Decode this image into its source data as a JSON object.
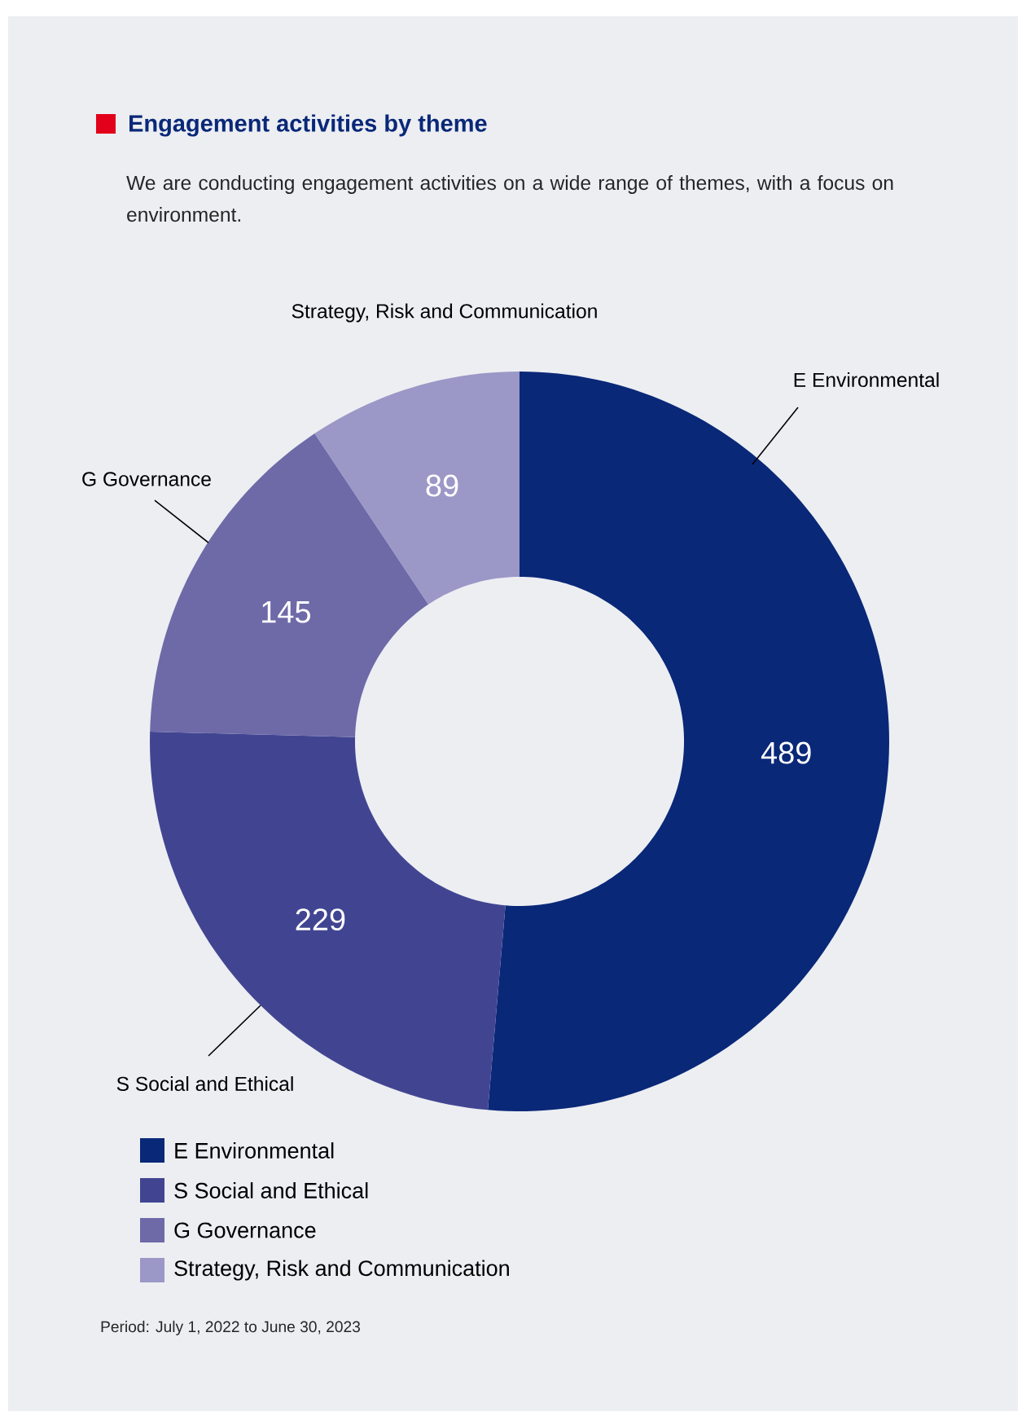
{
  "chart_data": {
    "type": "donut",
    "title": "Engagement activities by theme",
    "subtitle": "We are conducting engagement activities on a wide range of themes, with a focus on environment.",
    "categories": [
      "E Environmental",
      "S Social and Ethical",
      "G Governance",
      "Strategy, Risk and Communication"
    ],
    "values": [
      489,
      229,
      145,
      89
    ],
    "colors": [
      "#0a2878",
      "#414591",
      "#6e6aa8",
      "#9b97c6"
    ],
    "data_labels": true,
    "legend": "bottom left",
    "annotations": [
      "Period: July 1, 2022 to June 30, 2023"
    ]
  }
}
